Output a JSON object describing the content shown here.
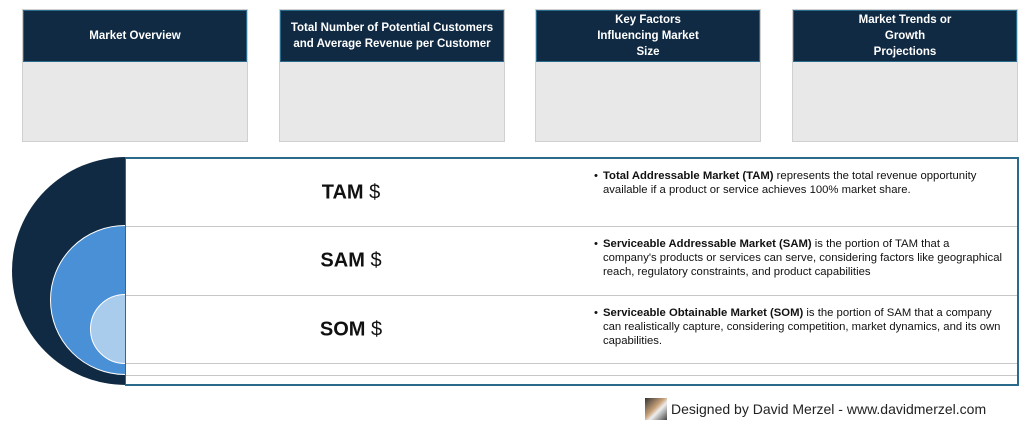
{
  "cards": [
    {
      "title": "Market Overview"
    },
    {
      "title": "Total Number of Potential Customers and Average Revenue per Customer"
    },
    {
      "title": "Key Factors Influencing Market Size"
    },
    {
      "title": "Market Trends or Growth Projections"
    }
  ],
  "rows": [
    {
      "label": "TAM",
      "currency": "$",
      "term": "Total Addressable Market (TAM)",
      "text": " represents the total revenue opportunity available if a product or service achieves 100% market share."
    },
    {
      "label": "SAM",
      "currency": "$",
      "term": "Serviceable Addressable Market (SAM)",
      "text": " is the portion of TAM that a company's products or services can serve, considering factors like geographical reach, regulatory constraints, and product capabilities"
    },
    {
      "label": "SOM",
      "currency": "$",
      "term": "Serviceable Obtainable Market (SOM)",
      "text": " is the portion of SAM that a company can realistically capture, considering competition, market dynamics, and its own capabilities."
    }
  ],
  "colors": {
    "navy": "#102a43",
    "blue": "#4a90d6",
    "light_blue": "#a9cbec",
    "border": "#2a6b8c"
  },
  "footer": {
    "text": "Designed by David Merzel - www.davidmerzel.com"
  }
}
